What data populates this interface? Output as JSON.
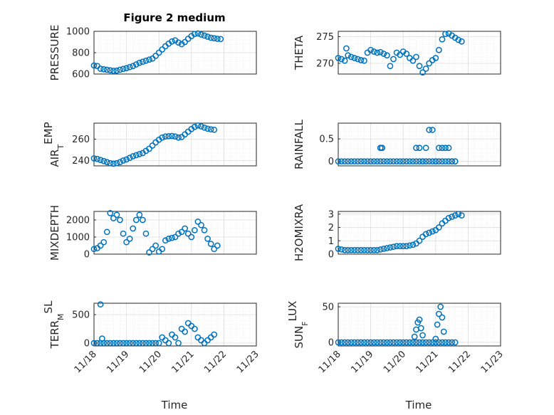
{
  "figure": {
    "title": "Figure 2 medium",
    "xlabel": "Time",
    "marker_color": "#0072BD",
    "x_tick_labels": [
      "11/18",
      "11/19",
      "11/20",
      "11/21",
      "11/22",
      "11/23"
    ]
  },
  "chart_data": [
    {
      "type": "scatter",
      "ylabel": "PRESSURE",
      "ylim": [
        600,
        1000
      ],
      "yticks": [
        600,
        800,
        1000
      ],
      "x_range": [
        "11/18",
        "11/23"
      ],
      "grid": true,
      "x": [
        18.0,
        18.1,
        18.2,
        18.3,
        18.4,
        18.5,
        18.6,
        18.7,
        18.8,
        18.9,
        19.0,
        19.1,
        19.2,
        19.3,
        19.4,
        19.5,
        19.6,
        19.7,
        19.8,
        19.9,
        20.0,
        20.1,
        20.2,
        20.3,
        20.4,
        20.5,
        20.6,
        20.7,
        20.8,
        20.9,
        21.0,
        21.1,
        21.2,
        21.3,
        21.4,
        21.5,
        21.6,
        21.7,
        21.8,
        21.9
      ],
      "y": [
        680,
        675,
        650,
        645,
        640,
        635,
        630,
        632,
        640,
        648,
        655,
        665,
        675,
        690,
        705,
        715,
        725,
        735,
        745,
        770,
        800,
        830,
        860,
        885,
        905,
        915,
        895,
        880,
        900,
        930,
        955,
        975,
        980,
        970,
        960,
        950,
        940,
        935,
        930,
        928
      ]
    },
    {
      "type": "scatter",
      "ylabel": "THETA",
      "ylim": [
        268,
        276
      ],
      "yticks": [
        270,
        275
      ],
      "x_range": [
        "11/18",
        "11/23"
      ],
      "grid": true,
      "x": [
        18.0,
        18.1,
        18.2,
        18.25,
        18.3,
        18.4,
        18.5,
        18.6,
        18.7,
        18.8,
        18.9,
        19.0,
        19.1,
        19.2,
        19.3,
        19.4,
        19.5,
        19.6,
        19.7,
        19.8,
        19.9,
        20.0,
        20.1,
        20.2,
        20.3,
        20.4,
        20.5,
        20.6,
        20.7,
        20.8,
        20.9,
        21.0,
        21.1,
        21.2,
        21.3,
        21.4,
        21.5,
        21.6,
        21.7,
        21.8
      ],
      "y": [
        271,
        270.8,
        270.5,
        272.8,
        271.5,
        271.2,
        271,
        270.8,
        270.6,
        270.5,
        272,
        272.5,
        272.2,
        272,
        272.1,
        271.8,
        271.5,
        269.5,
        270.8,
        272,
        271.6,
        272.2,
        271.8,
        271,
        270.5,
        271.2,
        269.5,
        268.3,
        269,
        270,
        270.6,
        271,
        272.5,
        274.5,
        275.5,
        275.6,
        275.2,
        274.8,
        274.4,
        274.1
      ]
    },
    {
      "type": "scatter",
      "ylabel": "AIR_TEMP",
      "ylim": [
        235,
        275
      ],
      "yticks": [
        240,
        260
      ],
      "x_range": [
        "11/18",
        "11/23"
      ],
      "grid": true,
      "x": [
        18.0,
        18.1,
        18.2,
        18.3,
        18.4,
        18.5,
        18.6,
        18.7,
        18.8,
        18.9,
        19.0,
        19.1,
        19.2,
        19.3,
        19.4,
        19.5,
        19.6,
        19.7,
        19.8,
        19.9,
        20.0,
        20.1,
        20.2,
        20.3,
        20.4,
        20.5,
        20.6,
        20.7,
        20.8,
        20.9,
        21.0,
        21.1,
        21.2,
        21.3,
        21.4,
        21.5,
        21.6,
        21.7
      ],
      "y": [
        242,
        241.5,
        240.5,
        239.5,
        238.5,
        237.5,
        237,
        237.5,
        238.5,
        240,
        241,
        242.5,
        244,
        245,
        246,
        247,
        249,
        251,
        254,
        257,
        259.5,
        261.5,
        262.5,
        262.8,
        263,
        262.5,
        261.5,
        262,
        264.5,
        267,
        269.5,
        271.5,
        272.8,
        272,
        270.8,
        269.8,
        269.2,
        268.8
      ]
    },
    {
      "type": "scatter",
      "ylabel": "RAINFALL",
      "ylim": [
        -0.1,
        0.85
      ],
      "yticks": [
        0,
        0.5
      ],
      "x_range": [
        "11/18",
        "11/23"
      ],
      "grid": true,
      "x": [
        18.0,
        18.1,
        18.2,
        18.3,
        18.4,
        18.5,
        18.6,
        18.7,
        18.8,
        18.9,
        19.0,
        19.1,
        19.2,
        19.3,
        19.4,
        19.5,
        19.6,
        19.7,
        19.8,
        19.9,
        20.0,
        20.1,
        20.2,
        20.3,
        20.4,
        20.5,
        20.6,
        20.7,
        20.8,
        20.9,
        21.0,
        21.1,
        21.2,
        21.3,
        21.4,
        21.5,
        21.6,
        20.4,
        20.5,
        20.6,
        20.7,
        20.8,
        20.9,
        21.0,
        21.1,
        21.2,
        21.3,
        21.4,
        21.5,
        21.6,
        19.3,
        19.3,
        19.35,
        19.35
      ],
      "y": [
        0,
        0,
        0,
        0,
        0,
        0,
        0,
        0,
        0,
        0,
        0,
        0,
        0,
        0,
        0,
        0,
        0,
        0,
        0,
        0,
        0,
        0,
        0,
        0,
        0,
        0,
        0,
        0,
        0,
        0,
        0,
        0,
        0,
        0,
        0,
        0,
        0,
        0.3,
        0.3,
        0,
        0.3,
        0.7,
        0.7,
        0,
        0.3,
        0.3,
        0.3,
        0.3,
        0,
        0,
        0.3,
        0.3,
        0.3,
        0.3
      ]
    },
    {
      "type": "scatter",
      "ylabel": "MIXDEPTH",
      "ylim": [
        0,
        2500
      ],
      "yticks": [
        0,
        1000,
        2000
      ],
      "x_range": [
        "11/18",
        "11/23"
      ],
      "grid": true,
      "x": [
        18.0,
        18.1,
        18.2,
        18.3,
        18.4,
        18.5,
        18.6,
        18.7,
        18.8,
        18.9,
        19.0,
        19.1,
        19.2,
        19.3,
        19.4,
        19.5,
        19.6,
        19.7,
        19.8,
        19.9,
        20.0,
        20.1,
        20.2,
        20.3,
        20.4,
        20.5,
        20.6,
        20.7,
        20.8,
        20.9,
        21.0,
        21.1,
        21.2,
        21.3,
        21.4,
        21.5,
        21.6,
        21.7,
        21.8
      ],
      "y": [
        300,
        350,
        500,
        700,
        1300,
        2400,
        2100,
        2300,
        2000,
        1200,
        700,
        900,
        1500,
        2000,
        2300,
        2000,
        1200,
        100,
        300,
        500,
        150,
        300,
        800,
        900,
        950,
        1000,
        1200,
        1300,
        1500,
        1200,
        1000,
        1400,
        1900,
        1700,
        1400,
        900,
        600,
        300,
        500
      ]
    },
    {
      "type": "scatter",
      "ylabel": "H2OMIXRA",
      "ylim": [
        0,
        3.2
      ],
      "yticks": [
        0,
        1,
        2,
        3
      ],
      "x_range": [
        "11/18",
        "11/23"
      ],
      "grid": true,
      "x": [
        18.0,
        18.1,
        18.2,
        18.3,
        18.4,
        18.5,
        18.6,
        18.7,
        18.8,
        18.9,
        19.0,
        19.1,
        19.2,
        19.3,
        19.4,
        19.5,
        19.6,
        19.7,
        19.8,
        19.9,
        20.0,
        20.1,
        20.2,
        20.3,
        20.4,
        20.5,
        20.6,
        20.7,
        20.8,
        20.9,
        21.0,
        21.1,
        21.2,
        21.3,
        21.4,
        21.5,
        21.6,
        21.7,
        21.8
      ],
      "y": [
        0.4,
        0.35,
        0.3,
        0.3,
        0.3,
        0.3,
        0.3,
        0.3,
        0.3,
        0.3,
        0.3,
        0.3,
        0.3,
        0.35,
        0.4,
        0.45,
        0.5,
        0.55,
        0.6,
        0.6,
        0.6,
        0.6,
        0.65,
        0.7,
        0.8,
        1.0,
        1.3,
        1.5,
        1.6,
        1.7,
        1.8,
        2.0,
        2.3,
        2.5,
        2.7,
        2.8,
        2.9,
        3.0,
        2.9
      ]
    },
    {
      "type": "scatter",
      "ylabel": "TERR_MSL",
      "ylim": [
        -50,
        700
      ],
      "yticks": [
        0,
        500
      ],
      "x_range": [
        "11/18",
        "11/23"
      ],
      "grid": true,
      "x": [
        18.0,
        18.1,
        18.2,
        18.3,
        18.4,
        18.5,
        18.6,
        18.7,
        18.8,
        18.9,
        19.0,
        19.1,
        19.2,
        19.3,
        19.4,
        19.5,
        19.6,
        19.7,
        19.8,
        19.9,
        20.0,
        20.1,
        20.2,
        20.3,
        20.4,
        20.5,
        20.6,
        20.7,
        20.8,
        20.9,
        21.0,
        21.1,
        21.2,
        21.3,
        21.4,
        21.5,
        21.6,
        21.7,
        18.2,
        18.25
      ],
      "y": [
        0,
        0,
        0,
        0,
        0,
        0,
        0,
        0,
        0,
        0,
        0,
        0,
        0,
        0,
        0,
        0,
        0,
        0,
        0,
        0,
        0,
        100,
        50,
        0,
        150,
        100,
        0,
        250,
        200,
        350,
        300,
        250,
        100,
        50,
        0,
        50,
        100,
        150,
        680,
        80
      ]
    },
    {
      "type": "scatter",
      "ylabel": "SUN_FLUX",
      "ylim": [
        -5,
        55
      ],
      "yticks": [
        0,
        50
      ],
      "x_range": [
        "11/18",
        "11/23"
      ],
      "grid": true,
      "x": [
        18.0,
        18.1,
        18.2,
        18.3,
        18.4,
        18.5,
        18.6,
        18.7,
        18.8,
        18.9,
        19.0,
        19.1,
        19.2,
        19.3,
        19.4,
        19.5,
        19.6,
        19.7,
        19.8,
        19.9,
        20.0,
        20.1,
        20.2,
        20.3,
        20.4,
        20.5,
        20.6,
        20.7,
        20.8,
        20.9,
        21.0,
        21.1,
        21.2,
        21.3,
        21.4,
        21.5,
        21.6,
        20.35,
        20.4,
        20.45,
        20.5,
        20.55,
        20.6,
        21.0,
        21.05,
        21.1,
        21.15,
        21.2,
        21.25
      ],
      "y": [
        0,
        0,
        0,
        0,
        0,
        0,
        0,
        0,
        0,
        0,
        0,
        0,
        0,
        0,
        0,
        0,
        0,
        0,
        0,
        0,
        0,
        0,
        0,
        0,
        0,
        0,
        0,
        0,
        0,
        0,
        0,
        0,
        0,
        0,
        0,
        0,
        0,
        8,
        18,
        28,
        32,
        20,
        10,
        5,
        25,
        40,
        50,
        35,
        15
      ]
    }
  ]
}
